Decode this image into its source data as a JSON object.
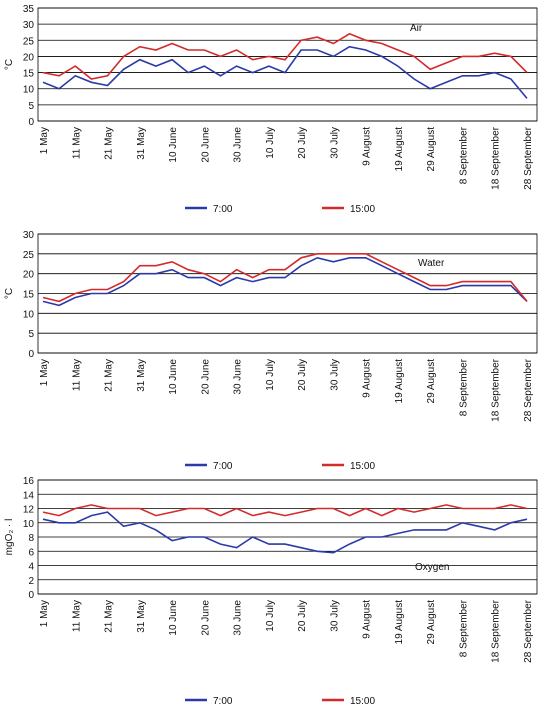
{
  "chart_data": [
    {
      "type": "line",
      "annotation": "Air",
      "ylabel": "°C",
      "categories": [
        "1 May",
        null,
        "11 May",
        null,
        "21 May",
        null,
        "31 May",
        null,
        "10 June",
        null,
        "20 June",
        null,
        "30 June",
        null,
        "10 July",
        null,
        "20 July",
        null,
        "30 July",
        null,
        "9 August",
        null,
        "19 August",
        null,
        "29 August",
        null,
        "8 September",
        null,
        "18 September",
        null,
        "28 September"
      ],
      "series": [
        {
          "name": "7:00",
          "color": "#2b3aa8",
          "values": [
            12,
            10,
            14,
            12,
            11,
            16,
            19,
            17,
            19,
            15,
            17,
            14,
            17,
            15,
            17,
            15,
            22,
            22,
            20,
            23,
            22,
            20,
            17,
            13,
            10,
            12,
            14,
            14,
            15,
            13,
            7
          ]
        },
        {
          "name": "15:00",
          "color": "#d42a2a",
          "values": [
            15,
            14,
            17,
            13,
            14,
            20,
            23,
            22,
            24,
            22,
            22,
            20,
            22,
            19,
            20,
            19,
            25,
            26,
            24,
            27,
            25,
            24,
            22,
            20,
            16,
            18,
            20,
            20,
            21,
            20,
            15
          ]
        }
      ],
      "ylim": [
        0,
        35
      ],
      "yticks": [
        0,
        5,
        10,
        15,
        20,
        25,
        30,
        35
      ],
      "grid": true
    },
    {
      "type": "line",
      "annotation": "Water",
      "ylabel": "°C",
      "categories": [
        "1 May",
        null,
        "11 May",
        null,
        "21 May",
        null,
        "31 May",
        null,
        "10 June",
        null,
        "20 June",
        null,
        "30 June",
        null,
        "10 July",
        null,
        "20 July",
        null,
        "30 July",
        null,
        "9 August",
        null,
        "19 August",
        null,
        "29 August",
        null,
        "8 September",
        null,
        "18 September",
        null,
        "28 September"
      ],
      "series": [
        {
          "name": "7:00",
          "color": "#2b3aa8",
          "values": [
            13,
            12,
            14,
            15,
            15,
            17,
            20,
            20,
            21,
            19,
            19,
            17,
            19,
            18,
            19,
            19,
            22,
            24,
            23,
            24,
            24,
            22,
            20,
            18,
            16,
            16,
            17,
            17,
            17,
            17,
            13
          ]
        },
        {
          "name": "15:00",
          "color": "#d42a2a",
          "values": [
            14,
            13,
            15,
            16,
            16,
            18,
            22,
            22,
            23,
            21,
            20,
            18,
            21,
            19,
            21,
            21,
            24,
            25,
            25,
            25,
            25,
            23,
            21,
            19,
            17,
            17,
            18,
            18,
            18,
            18,
            13
          ]
        }
      ],
      "ylim": [
        0,
        30
      ],
      "yticks": [
        0,
        5,
        10,
        15,
        20,
        25,
        30
      ],
      "grid": true
    },
    {
      "type": "line",
      "annotation": "Oxygen",
      "ylabel": "mgO₂ · l",
      "categories": [
        "1 May",
        null,
        "11 May",
        null,
        "21 May",
        null,
        "31 May",
        null,
        "10 June",
        null,
        "20 June",
        null,
        "30 June",
        null,
        "10 July",
        null,
        "20 July",
        null,
        "30 July",
        null,
        "9 August",
        null,
        "19 August",
        null,
        "29 August",
        null,
        "8 September",
        null,
        "18 September",
        null,
        "28 September"
      ],
      "series": [
        {
          "name": "7:00",
          "color": "#2b3aa8",
          "values": [
            10.5,
            10,
            10,
            11,
            11.5,
            9.5,
            10,
            9,
            7.5,
            8,
            8,
            7,
            6.5,
            8,
            7,
            7,
            6.5,
            6,
            5.8,
            7,
            8,
            8,
            8.5,
            9,
            9,
            9,
            10,
            9.5,
            9,
            10,
            10.5
          ]
        },
        {
          "name": "15:00",
          "color": "#d42a2a",
          "values": [
            11.5,
            11,
            12,
            12.5,
            12,
            12,
            12,
            11,
            11.5,
            12,
            12,
            11,
            12,
            11,
            11.5,
            11,
            11.5,
            12,
            12,
            11,
            12,
            11,
            12,
            11.5,
            12,
            12.5,
            12,
            12,
            12,
            12.5,
            12
          ]
        }
      ],
      "ylim": [
        0,
        16
      ],
      "yticks": [
        0,
        2,
        4,
        6,
        8,
        10,
        12,
        14,
        16
      ],
      "grid": true
    }
  ]
}
